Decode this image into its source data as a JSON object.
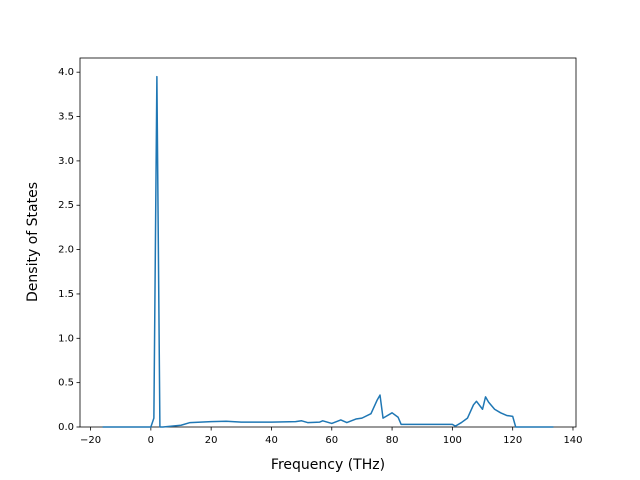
{
  "chart_data": {
    "type": "line",
    "xlabel": "Frequency (THz)",
    "ylabel": "Density of States",
    "x": [
      -16,
      0,
      1,
      2,
      3,
      4,
      10,
      13,
      20,
      25,
      30,
      40,
      48,
      50,
      52,
      56,
      57,
      60,
      63,
      65,
      68,
      70,
      73,
      75,
      76,
      77,
      78,
      80,
      82,
      83,
      85,
      100,
      101,
      103,
      105,
      107,
      108,
      110,
      111,
      112,
      114,
      116,
      118,
      120,
      121,
      133.5
    ],
    "values": [
      0,
      0,
      0.1,
      3.95,
      0,
      0,
      0.02,
      0.05,
      0.06,
      0.065,
      0.055,
      0.055,
      0.06,
      0.07,
      0.05,
      0.055,
      0.07,
      0.04,
      0.08,
      0.05,
      0.09,
      0.1,
      0.15,
      0.3,
      0.36,
      0.1,
      0.12,
      0.16,
      0.11,
      0.03,
      0.03,
      0.03,
      0.01,
      0.05,
      0.1,
      0.25,
      0.29,
      0.2,
      0.34,
      0.28,
      0.2,
      0.16,
      0.13,
      0.12,
      0,
      0
    ],
    "color": "#1f77b4",
    "xlim": [
      -23.5,
      141
    ],
    "xticks": [
      {
        "value": -20,
        "label": "−20"
      },
      0,
      20,
      40,
      60,
      80,
      100,
      120,
      140
    ],
    "ylim": [
      0,
      4.16
    ],
    "yticks": [
      {
        "value": 0,
        "label": "0.0"
      },
      0.5,
      {
        "value": 1,
        "label": "1.0"
      },
      1.5,
      {
        "value": 2,
        "label": "2.0"
      },
      2.5,
      {
        "value": 3,
        "label": "3.0"
      },
      3.5,
      {
        "value": 4,
        "label": "4.0"
      }
    ]
  }
}
